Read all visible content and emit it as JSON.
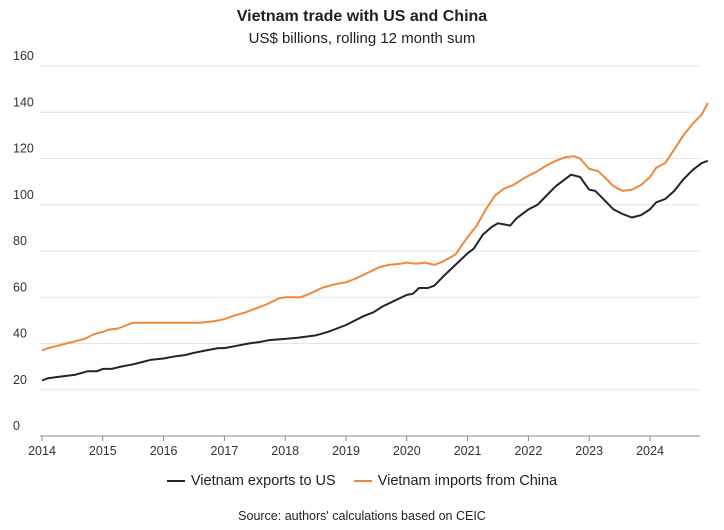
{
  "chart_data": {
    "type": "line",
    "title": "Vietnam trade with US and China",
    "subtitle": "US$ billions, rolling 12 month sum",
    "xlabel": "",
    "ylabel": "",
    "xlim": [
      2014,
      2024.95
    ],
    "ylim": [
      0,
      160
    ],
    "yticks": [
      0,
      20,
      40,
      60,
      80,
      100,
      120,
      140,
      160
    ],
    "xticks": [
      2014,
      2015,
      2016,
      2017,
      2018,
      2019,
      2020,
      2021,
      2022,
      2023,
      2024
    ],
    "grid": "horizontal",
    "legend_position": "bottom",
    "source": "Source: authors' calculations based on CEIC",
    "series": [
      {
        "name": "Vietnam exports to US",
        "color": "#1f2430",
        "points": [
          [
            2014.0,
            24
          ],
          [
            2014.1,
            25
          ],
          [
            2014.25,
            25.5
          ],
          [
            2014.4,
            26
          ],
          [
            2014.55,
            26.5
          ],
          [
            2014.75,
            28
          ],
          [
            2014.9,
            28
          ],
          [
            2015.0,
            29
          ],
          [
            2015.15,
            29
          ],
          [
            2015.3,
            30
          ],
          [
            2015.5,
            31
          ],
          [
            2015.65,
            32
          ],
          [
            2015.8,
            33
          ],
          [
            2016.0,
            33.5
          ],
          [
            2016.2,
            34.5
          ],
          [
            2016.35,
            35
          ],
          [
            2016.5,
            36
          ],
          [
            2016.7,
            37
          ],
          [
            2016.9,
            38
          ],
          [
            2017.0,
            38
          ],
          [
            2017.2,
            39
          ],
          [
            2017.4,
            40
          ],
          [
            2017.55,
            40.5
          ],
          [
            2017.75,
            41.5
          ],
          [
            2018.0,
            42
          ],
          [
            2018.2,
            42.5
          ],
          [
            2018.35,
            43
          ],
          [
            2018.5,
            43.5
          ],
          [
            2018.7,
            45
          ],
          [
            2018.85,
            46.5
          ],
          [
            2019.0,
            48
          ],
          [
            2019.15,
            50
          ],
          [
            2019.3,
            52
          ],
          [
            2019.45,
            53.5
          ],
          [
            2019.6,
            56
          ],
          [
            2019.8,
            58.5
          ],
          [
            2020.0,
            61
          ],
          [
            2020.1,
            61.5
          ],
          [
            2020.2,
            64
          ],
          [
            2020.35,
            64
          ],
          [
            2020.45,
            65
          ],
          [
            2020.6,
            69
          ],
          [
            2020.8,
            74
          ],
          [
            2021.0,
            79
          ],
          [
            2021.1,
            81
          ],
          [
            2021.25,
            87
          ],
          [
            2021.4,
            90.5
          ],
          [
            2021.5,
            92
          ],
          [
            2021.6,
            91.5
          ],
          [
            2021.7,
            91
          ],
          [
            2021.8,
            94
          ],
          [
            2022.0,
            98
          ],
          [
            2022.15,
            100
          ],
          [
            2022.3,
            104
          ],
          [
            2022.45,
            108
          ],
          [
            2022.6,
            111
          ],
          [
            2022.7,
            113
          ],
          [
            2022.85,
            112
          ],
          [
            2023.0,
            106.5
          ],
          [
            2023.1,
            106
          ],
          [
            2023.25,
            102
          ],
          [
            2023.4,
            98
          ],
          [
            2023.55,
            96
          ],
          [
            2023.7,
            94.5
          ],
          [
            2023.85,
            95.5
          ],
          [
            2024.0,
            98
          ],
          [
            2024.1,
            101
          ],
          [
            2024.25,
            102.5
          ],
          [
            2024.4,
            106
          ],
          [
            2024.55,
            111
          ],
          [
            2024.7,
            115
          ],
          [
            2024.85,
            118
          ],
          [
            2024.95,
            119
          ]
        ]
      },
      {
        "name": "Vietnam imports from China",
        "color": "#f0883a",
        "points": [
          [
            2014.0,
            37
          ],
          [
            2014.1,
            38
          ],
          [
            2014.25,
            39
          ],
          [
            2014.4,
            40
          ],
          [
            2014.55,
            41
          ],
          [
            2014.7,
            42
          ],
          [
            2014.85,
            44
          ],
          [
            2015.0,
            45
          ],
          [
            2015.1,
            46
          ],
          [
            2015.25,
            46.5
          ],
          [
            2015.4,
            48
          ],
          [
            2015.5,
            49
          ],
          [
            2015.7,
            49
          ],
          [
            2015.9,
            49
          ],
          [
            2016.0,
            49
          ],
          [
            2016.3,
            49
          ],
          [
            2016.6,
            49
          ],
          [
            2016.8,
            49.5
          ],
          [
            2017.0,
            50.5
          ],
          [
            2017.15,
            52
          ],
          [
            2017.35,
            53.5
          ],
          [
            2017.5,
            55
          ],
          [
            2017.7,
            57
          ],
          [
            2017.9,
            59.5
          ],
          [
            2018.0,
            60
          ],
          [
            2018.25,
            60
          ],
          [
            2018.4,
            61.5
          ],
          [
            2018.6,
            64
          ],
          [
            2018.8,
            65.5
          ],
          [
            2019.0,
            66.5
          ],
          [
            2019.15,
            68
          ],
          [
            2019.35,
            70.5
          ],
          [
            2019.55,
            73
          ],
          [
            2019.7,
            74
          ],
          [
            2019.9,
            74.5
          ],
          [
            2020.0,
            75
          ],
          [
            2020.15,
            74.5
          ],
          [
            2020.3,
            75
          ],
          [
            2020.45,
            74
          ],
          [
            2020.6,
            75.5
          ],
          [
            2020.8,
            78.5
          ],
          [
            2021.0,
            86
          ],
          [
            2021.15,
            91
          ],
          [
            2021.3,
            98
          ],
          [
            2021.45,
            104
          ],
          [
            2021.6,
            107
          ],
          [
            2021.75,
            108.5
          ],
          [
            2021.9,
            111
          ],
          [
            2022.0,
            112.5
          ],
          [
            2022.15,
            114.5
          ],
          [
            2022.3,
            117
          ],
          [
            2022.45,
            119
          ],
          [
            2022.6,
            120.5
          ],
          [
            2022.75,
            121
          ],
          [
            2022.85,
            120
          ],
          [
            2023.0,
            115.5
          ],
          [
            2023.15,
            114.5
          ],
          [
            2023.25,
            112
          ],
          [
            2023.4,
            108
          ],
          [
            2023.55,
            106
          ],
          [
            2023.7,
            106.5
          ],
          [
            2023.85,
            108.5
          ],
          [
            2024.0,
            112
          ],
          [
            2024.1,
            116
          ],
          [
            2024.25,
            118
          ],
          [
            2024.4,
            124
          ],
          [
            2024.55,
            130
          ],
          [
            2024.7,
            135
          ],
          [
            2024.85,
            139
          ],
          [
            2024.95,
            144
          ]
        ]
      }
    ]
  }
}
